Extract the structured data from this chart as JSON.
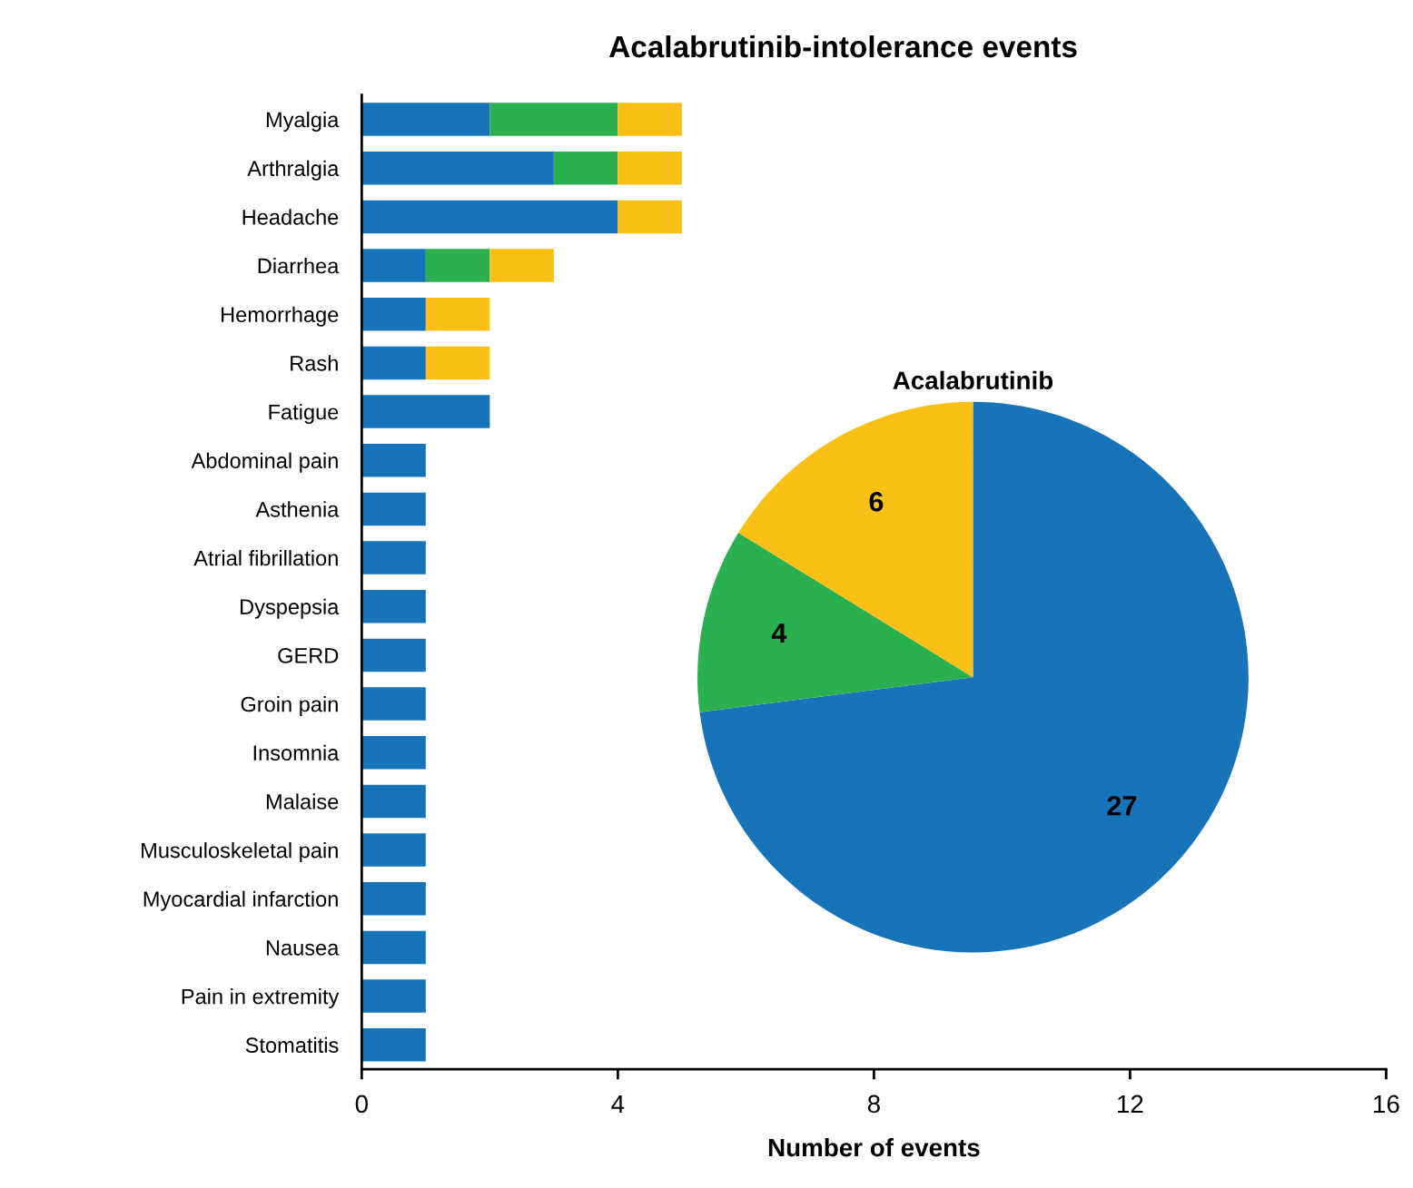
{
  "chart_data": [
    {
      "type": "bar",
      "title": "Acalabrutinib-intolerance events",
      "xlabel": "Number of events",
      "orientation": "horizontal",
      "stacked": true,
      "categories": [
        "Myalgia",
        "Arthralgia",
        "Headache",
        "Diarrhea",
        "Hemorrhage",
        "Rash",
        "Fatigue",
        "Abdominal pain",
        "Asthenia",
        "Atrial fibrillation",
        "Dyspepsia",
        "GERD",
        "Groin pain",
        "Insomnia",
        "Malaise",
        "Musculoskeletal pain",
        "Myocardial infarction",
        "Nausea",
        "Pain in extremity",
        "Stomatitis"
      ],
      "series": [
        {
          "color": "#1874b9",
          "values": [
            2,
            3,
            4,
            1,
            1,
            1,
            2,
            1,
            1,
            1,
            1,
            1,
            1,
            1,
            1,
            1,
            1,
            1,
            1,
            1
          ]
        },
        {
          "color": "#2bb04f",
          "values": [
            2,
            1,
            0,
            1,
            0,
            0,
            0,
            0,
            0,
            0,
            0,
            0,
            0,
            0,
            0,
            0,
            0,
            0,
            0,
            0
          ]
        },
        {
          "color": "#fbc015",
          "values": [
            1,
            1,
            1,
            1,
            1,
            1,
            0,
            0,
            0,
            0,
            0,
            0,
            0,
            0,
            0,
            0,
            0,
            0,
            0,
            0
          ]
        }
      ],
      "xlim": [
        0,
        16
      ],
      "xticks": [
        0,
        4,
        8,
        12,
        16
      ],
      "grid": false
    },
    {
      "type": "pie",
      "title": "Acalabrutinib",
      "categories": [
        null,
        null,
        null
      ],
      "values": [
        27,
        4,
        6
      ],
      "colors": [
        "#1874b9",
        "#2bb04f",
        "#fbc015"
      ],
      "data_labels": true
    }
  ]
}
